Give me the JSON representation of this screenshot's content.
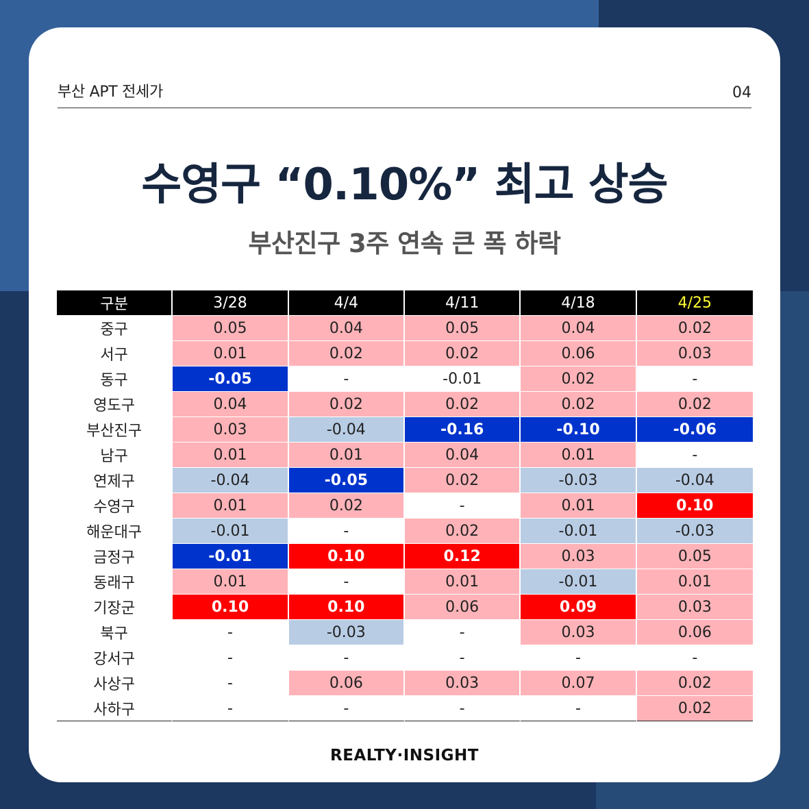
{
  "header": {
    "label": "부산 APT 전세가",
    "page_number": "04"
  },
  "title": "수영구 “0.10%” 최고 상승",
  "subtitle": "부산진구 3주 연속 큰 폭 하락",
  "colors": {
    "background_dark": "#1c3760",
    "background_blue": "#34609a",
    "rise_light": "#ffb3b8",
    "fall_light": "#b8cce4",
    "rise_strong": "#ff0000",
    "fall_strong": "#0033cc",
    "highlight_header": "#ffff33"
  },
  "table": {
    "columns": [
      "구분",
      "3/28",
      "4/4",
      "4/11",
      "4/18",
      "4/25"
    ],
    "highlight_column": 5,
    "rows": [
      {
        "district": "중구",
        "values": [
          "0.05",
          "0.04",
          "0.05",
          "0.04",
          "0.02"
        ],
        "styles": [
          "pos",
          "pos",
          "pos",
          "pos",
          "pos"
        ]
      },
      {
        "district": "서구",
        "values": [
          "0.01",
          "0.02",
          "0.02",
          "0.06",
          "0.03"
        ],
        "styles": [
          "pos",
          "pos",
          "pos",
          "pos",
          "pos"
        ]
      },
      {
        "district": "동구",
        "values": [
          "-0.05",
          "-",
          "-0.01",
          "0.02",
          "-"
        ],
        "styles": [
          "down",
          "none",
          "none",
          "pos",
          "none"
        ]
      },
      {
        "district": "영도구",
        "values": [
          "0.04",
          "0.02",
          "0.02",
          "0.02",
          "0.02"
        ],
        "styles": [
          "pos",
          "pos",
          "pos",
          "pos",
          "pos"
        ]
      },
      {
        "district": "부산진구",
        "values": [
          "0.03",
          "-0.04",
          "-0.16",
          "-0.10",
          "-0.06"
        ],
        "styles": [
          "pos",
          "neg",
          "down",
          "down",
          "down"
        ]
      },
      {
        "district": "남구",
        "values": [
          "0.01",
          "0.01",
          "0.04",
          "0.01",
          "-"
        ],
        "styles": [
          "pos",
          "pos",
          "pos",
          "pos",
          "none"
        ]
      },
      {
        "district": "연제구",
        "values": [
          "-0.04",
          "-0.05",
          "0.02",
          "-0.03",
          "-0.04"
        ],
        "styles": [
          "neg",
          "down",
          "pos",
          "neg",
          "neg"
        ]
      },
      {
        "district": "수영구",
        "values": [
          "0.01",
          "0.02",
          "-",
          "0.01",
          "0.10"
        ],
        "styles": [
          "pos",
          "pos",
          "none",
          "pos",
          "up"
        ]
      },
      {
        "district": "해운대구",
        "values": [
          "-0.01",
          "-",
          "0.02",
          "-0.01",
          "-0.03"
        ],
        "styles": [
          "neg",
          "none",
          "pos",
          "neg",
          "neg"
        ]
      },
      {
        "district": "금정구",
        "values": [
          "-0.01",
          "0.10",
          "0.12",
          "0.03",
          "0.05"
        ],
        "styles": [
          "down",
          "up",
          "up",
          "pos",
          "pos"
        ]
      },
      {
        "district": "동래구",
        "values": [
          "0.01",
          "-",
          "0.01",
          "-0.01",
          "0.01"
        ],
        "styles": [
          "pos",
          "none",
          "pos",
          "neg",
          "pos"
        ]
      },
      {
        "district": "기장군",
        "values": [
          "0.10",
          "0.10",
          "0.06",
          "0.09",
          "0.03"
        ],
        "styles": [
          "up",
          "up",
          "pos",
          "up",
          "pos"
        ]
      },
      {
        "district": "북구",
        "values": [
          "-",
          "-0.03",
          "-",
          "0.03",
          "0.06"
        ],
        "styles": [
          "none",
          "neg",
          "none",
          "pos",
          "pos"
        ]
      },
      {
        "district": "강서구",
        "values": [
          "-",
          "-",
          "-",
          "-",
          "-"
        ],
        "styles": [
          "none",
          "none",
          "none",
          "none",
          "none"
        ]
      },
      {
        "district": "사상구",
        "values": [
          "-",
          "0.06",
          "0.03",
          "0.07",
          "0.02"
        ],
        "styles": [
          "none",
          "pos",
          "pos",
          "pos",
          "pos"
        ]
      },
      {
        "district": "사하구",
        "values": [
          "-",
          "-",
          "-",
          "-",
          "0.02"
        ],
        "styles": [
          "none",
          "none",
          "none",
          "none",
          "pos"
        ]
      }
    ]
  },
  "footer": {
    "brand": "REALTY·INSIGHT"
  }
}
